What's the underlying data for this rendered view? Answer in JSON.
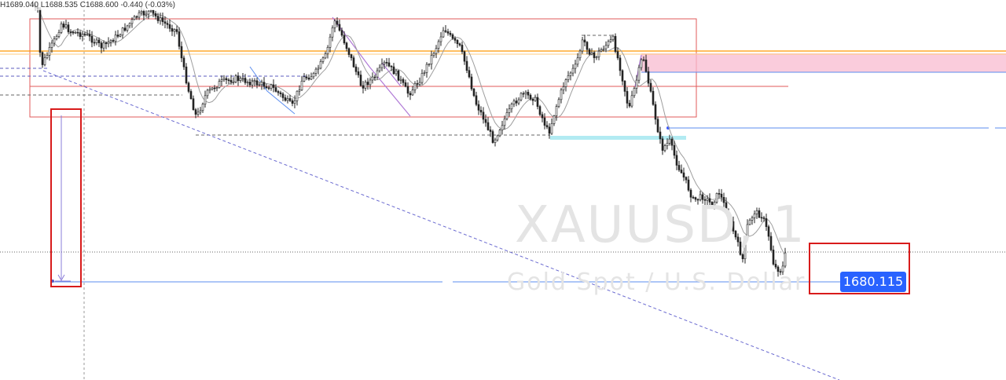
{
  "header": {
    "ohlc_text": "H1689.040 L1688.535 C1688.600 -0.440 (-0.03%)"
  },
  "watermark": {
    "symbol": "XAUUSD, 1",
    "description": "Gold Spot / U.S. Dollar"
  },
  "price_label": "1680.115",
  "colors": {
    "candle": "#222222",
    "ma_line": "#9e9e9e",
    "zone_border": "#e05a5a",
    "supply_zone_fill": "#f8bbd0",
    "demand_zone_fill": "#b2ebf2",
    "orange_level": "#ff9800",
    "blue_line": "#5b8def",
    "purple_line": "#b07ad6",
    "annotation_box": "#d81b1b",
    "badge": "#2962ff"
  },
  "chart_data": {
    "type": "candlestick",
    "symbol": "XAUUSD",
    "timeframe": "1",
    "current_price": 1680.115
  }
}
